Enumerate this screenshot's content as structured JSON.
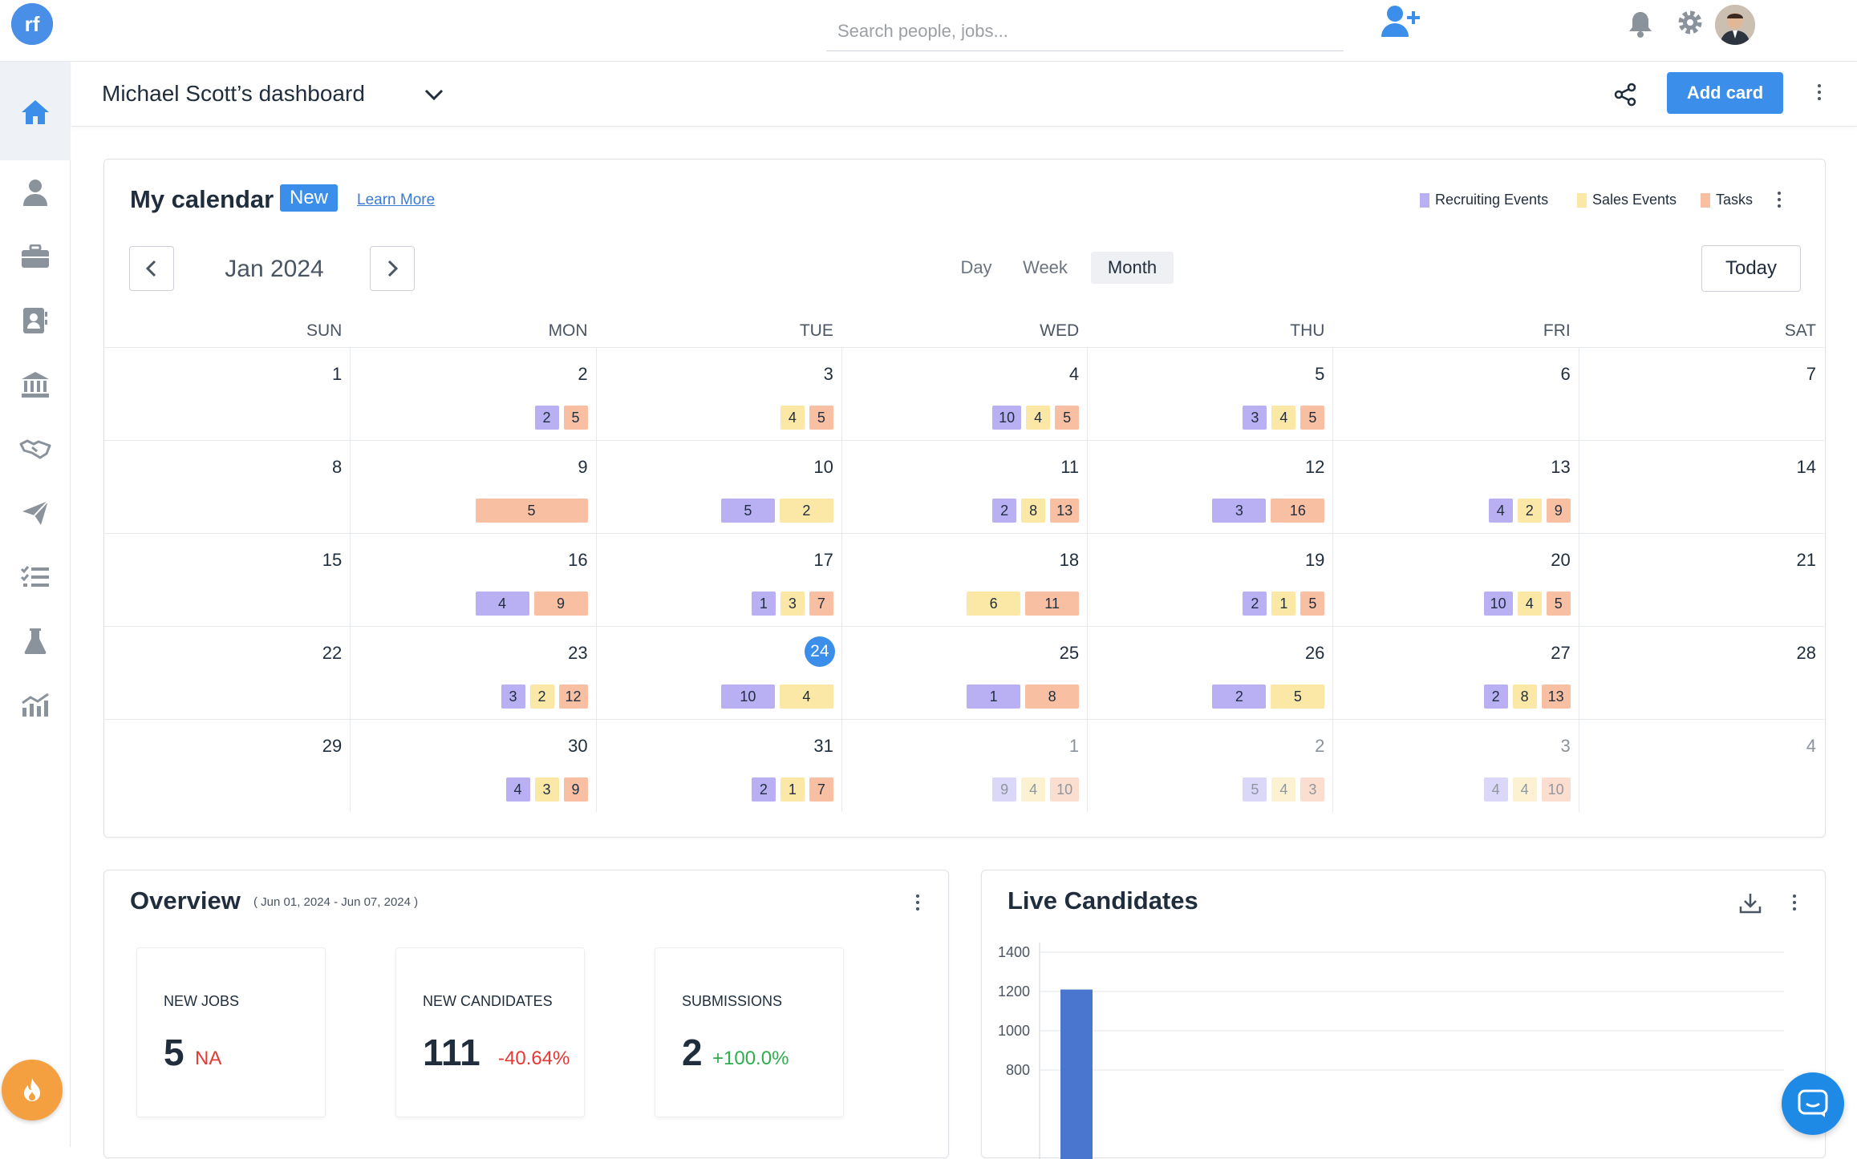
{
  "topbar": {
    "search_placeholder": "Search people, jobs..."
  },
  "header": {
    "title": "Michael Scott’s dashboard",
    "add_card_label": "Add card"
  },
  "calendar": {
    "title": "My calendar",
    "badge": "New",
    "learn_more": "Learn More",
    "legend": [
      {
        "label": "Recruiting Events",
        "color": "#b8b0f3"
      },
      {
        "label": "Sales Events",
        "color": "#fbe7a6"
      },
      {
        "label": "Tasks",
        "color": "#f8bfa3"
      }
    ],
    "month_label": "Jan 2024",
    "views": [
      "Day",
      "Week",
      "Month"
    ],
    "selected_view": "Month",
    "today_label": "Today",
    "weekdays": [
      "SUN",
      "MON",
      "TUE",
      "WED",
      "THU",
      "FRI",
      "SAT"
    ],
    "weeks": [
      [
        {
          "d": "1",
          "c": []
        },
        {
          "d": "2",
          "c": [
            [
              "p",
              "2"
            ],
            [
              "o",
              "5"
            ]
          ]
        },
        {
          "d": "3",
          "c": [
            [
              "y",
              "4"
            ],
            [
              "o",
              "5"
            ]
          ]
        },
        {
          "d": "4",
          "c": [
            [
              "p",
              "10"
            ],
            [
              "y",
              "4"
            ],
            [
              "o",
              "5"
            ]
          ]
        },
        {
          "d": "5",
          "c": [
            [
              "p",
              "3"
            ],
            [
              "y",
              "4"
            ],
            [
              "o",
              "5"
            ]
          ]
        },
        {
          "d": "6",
          "c": []
        },
        {
          "d": "7",
          "c": []
        }
      ],
      [
        {
          "d": "8",
          "c": []
        },
        {
          "d": "9",
          "c": [
            [
              "o",
              "5",
              "wide"
            ]
          ]
        },
        {
          "d": "10",
          "c": [
            [
              "p",
              "5",
              "w"
            ],
            [
              "y",
              "2",
              "w"
            ]
          ]
        },
        {
          "d": "11",
          "c": [
            [
              "p",
              "2"
            ],
            [
              "y",
              "8"
            ],
            [
              "o",
              "13"
            ]
          ]
        },
        {
          "d": "12",
          "c": [
            [
              "p",
              "3",
              "w"
            ],
            [
              "o",
              "16",
              "w"
            ]
          ]
        },
        {
          "d": "13",
          "c": [
            [
              "p",
              "4"
            ],
            [
              "y",
              "2"
            ],
            [
              "o",
              "9"
            ]
          ]
        },
        {
          "d": "14",
          "c": []
        }
      ],
      [
        {
          "d": "15",
          "c": []
        },
        {
          "d": "16",
          "c": [
            [
              "p",
              "4",
              "w"
            ],
            [
              "o",
              "9",
              "w"
            ]
          ]
        },
        {
          "d": "17",
          "c": [
            [
              "p",
              "1"
            ],
            [
              "y",
              "3"
            ],
            [
              "o",
              "7"
            ]
          ]
        },
        {
          "d": "18",
          "c": [
            [
              "y",
              "6",
              "w"
            ],
            [
              "o",
              "11",
              "w"
            ]
          ]
        },
        {
          "d": "19",
          "c": [
            [
              "p",
              "2"
            ],
            [
              "y",
              "1"
            ],
            [
              "o",
              "5"
            ]
          ]
        },
        {
          "d": "20",
          "c": [
            [
              "p",
              "10"
            ],
            [
              "y",
              "4"
            ],
            [
              "o",
              "5"
            ]
          ]
        },
        {
          "d": "21",
          "c": []
        }
      ],
      [
        {
          "d": "22",
          "c": []
        },
        {
          "d": "23",
          "c": [
            [
              "p",
              "3"
            ],
            [
              "y",
              "2"
            ],
            [
              "o",
              "12"
            ]
          ]
        },
        {
          "d": "24",
          "c": [
            [
              "p",
              "10",
              "w"
            ],
            [
              "y",
              "4",
              "w"
            ]
          ],
          "today": true
        },
        {
          "d": "25",
          "c": [
            [
              "p",
              "1",
              "w"
            ],
            [
              "o",
              "8",
              "w"
            ]
          ]
        },
        {
          "d": "26",
          "c": [
            [
              "p",
              "2",
              "w"
            ],
            [
              "y",
              "5",
              "w"
            ]
          ]
        },
        {
          "d": "27",
          "c": [
            [
              "p",
              "2"
            ],
            [
              "y",
              "8"
            ],
            [
              "o",
              "13"
            ]
          ]
        },
        {
          "d": "28",
          "c": []
        }
      ],
      [
        {
          "d": "29",
          "c": []
        },
        {
          "d": "30",
          "c": [
            [
              "p",
              "4"
            ],
            [
              "y",
              "3"
            ],
            [
              "o",
              "9"
            ]
          ]
        },
        {
          "d": "31",
          "c": [
            [
              "p",
              "2"
            ],
            [
              "y",
              "1"
            ],
            [
              "o",
              "7"
            ]
          ]
        },
        {
          "d": "1",
          "c": [
            [
              "p",
              "9"
            ],
            [
              "y",
              "4"
            ],
            [
              "o",
              "10"
            ]
          ],
          "other": true
        },
        {
          "d": "2",
          "c": [
            [
              "p",
              "5"
            ],
            [
              "y",
              "4"
            ],
            [
              "o",
              "3"
            ]
          ],
          "other": true
        },
        {
          "d": "3",
          "c": [
            [
              "p",
              "4"
            ],
            [
              "y",
              "4"
            ],
            [
              "o",
              "10"
            ]
          ],
          "other": true
        },
        {
          "d": "4",
          "c": [],
          "other": true
        }
      ]
    ]
  },
  "overview": {
    "title": "Overview",
    "range": "( Jun 01, 2024 - Jun 07, 2024 )",
    "stats": [
      {
        "label": "NEW JOBS",
        "value": "5",
        "change": "NA",
        "change_color": "#e53935"
      },
      {
        "label": "NEW CANDIDATES",
        "value": "111",
        "change": "-40.64%",
        "change_color": "#e53935"
      },
      {
        "label": "SUBMISSIONS",
        "value": "2",
        "change": "+100.0%",
        "change_color": "#2eae4f"
      }
    ]
  },
  "live_candidates": {
    "title": "Live Candidates"
  },
  "chart_data": {
    "type": "bar",
    "title": "Live Candidates",
    "y_ticks": [
      "1400",
      "1200",
      "1000",
      "800"
    ],
    "ylim": [
      800,
      1400
    ],
    "series": [
      {
        "values": [
          1210
        ]
      }
    ],
    "bar_color": "#4a76cf"
  }
}
